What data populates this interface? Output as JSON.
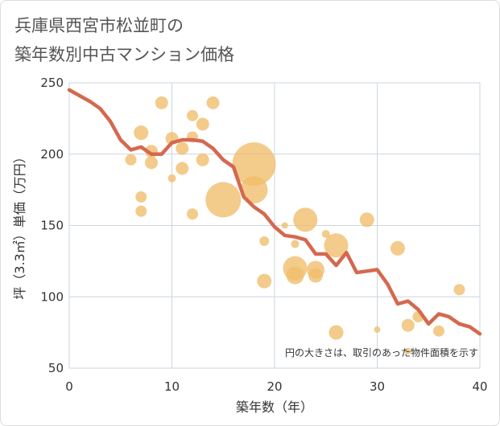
{
  "title_lines": [
    "兵庫県西宮市松並町の",
    "築年数別中古マンション価格"
  ],
  "chart_data": {
    "type": "scatter",
    "xlabel": "築年数（年）",
    "ylabel": "坪（3.3㎡）単価（万円）",
    "xlim": [
      0,
      40
    ],
    "ylim": [
      50,
      250
    ],
    "xticks": [
      0,
      10,
      20,
      30,
      40
    ],
    "yticks": [
      50,
      100,
      150,
      200,
      250
    ],
    "grid": true,
    "annotation": "円の大きさは、取引のあった物件面積を示す",
    "colors": {
      "bubble": "#f0bd6a",
      "line": "#d4694f",
      "grid": "#ccd6e0"
    },
    "bubbles": [
      {
        "x": 6,
        "y": 196,
        "r": 7
      },
      {
        "x": 7,
        "y": 215,
        "r": 9
      },
      {
        "x": 7,
        "y": 170,
        "r": 7
      },
      {
        "x": 7,
        "y": 160,
        "r": 7
      },
      {
        "x": 8,
        "y": 202,
        "r": 8
      },
      {
        "x": 8,
        "y": 194,
        "r": 8
      },
      {
        "x": 9,
        "y": 236,
        "r": 8
      },
      {
        "x": 10,
        "y": 211,
        "r": 8
      },
      {
        "x": 10,
        "y": 183,
        "r": 5
      },
      {
        "x": 11,
        "y": 204,
        "r": 8
      },
      {
        "x": 11,
        "y": 190,
        "r": 8
      },
      {
        "x": 12,
        "y": 227,
        "r": 7
      },
      {
        "x": 12,
        "y": 212,
        "r": 7
      },
      {
        "x": 12,
        "y": 158,
        "r": 7
      },
      {
        "x": 13,
        "y": 221,
        "r": 8
      },
      {
        "x": 13,
        "y": 196,
        "r": 8
      },
      {
        "x": 14,
        "y": 236,
        "r": 8
      },
      {
        "x": 15,
        "y": 168,
        "r": 22
      },
      {
        "x": 18,
        "y": 193,
        "r": 27
      },
      {
        "x": 18,
        "y": 175,
        "r": 17
      },
      {
        "x": 19,
        "y": 139,
        "r": 6
      },
      {
        "x": 19,
        "y": 111,
        "r": 9
      },
      {
        "x": 21,
        "y": 150,
        "r": 4
      },
      {
        "x": 22,
        "y": 137,
        "r": 5
      },
      {
        "x": 22,
        "y": 120,
        "r": 15
      },
      {
        "x": 22,
        "y": 115,
        "r": 11
      },
      {
        "x": 23,
        "y": 154,
        "r": 15
      },
      {
        "x": 24,
        "y": 119,
        "r": 11
      },
      {
        "x": 24,
        "y": 115,
        "r": 9
      },
      {
        "x": 25,
        "y": 144,
        "r": 5
      },
      {
        "x": 26,
        "y": 136,
        "r": 15
      },
      {
        "x": 26,
        "y": 75,
        "r": 9
      },
      {
        "x": 29,
        "y": 154,
        "r": 9
      },
      {
        "x": 30,
        "y": 77,
        "r": 4
      },
      {
        "x": 32,
        "y": 134,
        "r": 9
      },
      {
        "x": 33,
        "y": 80,
        "r": 8
      },
      {
        "x": 33,
        "y": 62,
        "r": 4
      },
      {
        "x": 34,
        "y": 86,
        "r": 7
      },
      {
        "x": 36,
        "y": 76,
        "r": 7
      },
      {
        "x": 38,
        "y": 105,
        "r": 7
      }
    ],
    "series": [
      {
        "x": [
          0,
          1,
          2,
          3,
          4,
          5,
          6,
          7,
          8,
          9,
          10,
          11,
          12,
          13,
          14,
          15,
          16,
          17,
          18,
          19,
          20,
          21,
          22,
          23,
          24,
          25,
          26,
          27,
          28,
          29,
          30,
          31,
          32,
          33,
          34,
          35,
          36,
          37,
          38,
          39,
          40
        ],
        "values": [
          245,
          241,
          237,
          232,
          223,
          210,
          203,
          205,
          200,
          200,
          208,
          210,
          210,
          209,
          204,
          196,
          191,
          170,
          163,
          158,
          149,
          143,
          142,
          140,
          130,
          130,
          122,
          131,
          117,
          118,
          119,
          109,
          95,
          97,
          91,
          81,
          88,
          86,
          81,
          79,
          74
        ]
      }
    ]
  }
}
